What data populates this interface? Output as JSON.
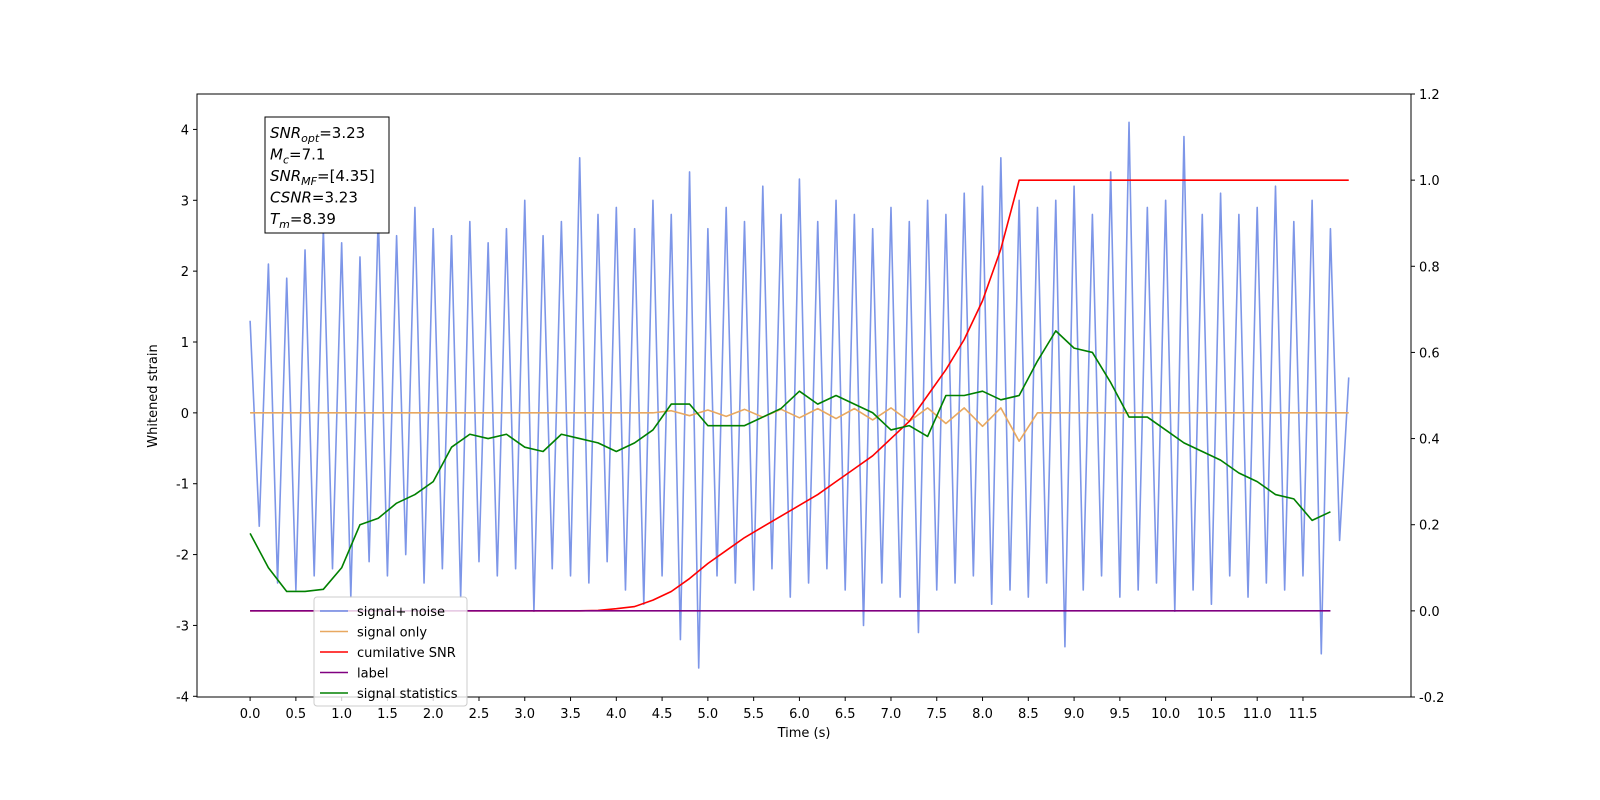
{
  "chart_data": {
    "type": "line",
    "xlabel": "Time (s)",
    "ylabel": "Whitened strain",
    "xlim": [
      -0.58,
      12.68
    ],
    "ylim": [
      -4.01,
      4.5
    ],
    "y2lim": [
      -0.2,
      1.2
    ],
    "xticks": [
      {
        "value": 0,
        "label": "0.0"
      },
      0.5,
      {
        "value": 1,
        "label": "1.0"
      },
      1.5,
      {
        "value": 2,
        "label": "2.0"
      },
      2.5,
      {
        "value": 3,
        "label": "3.0"
      },
      3.5,
      {
        "value": 4,
        "label": "4.0"
      },
      4.5,
      {
        "value": 5,
        "label": "5.0"
      },
      5.5,
      {
        "value": 6,
        "label": "6.0"
      },
      6.5,
      {
        "value": 7,
        "label": "7.0"
      },
      7.5,
      {
        "value": 8,
        "label": "8.0"
      },
      8.5,
      {
        "value": 9,
        "label": "9.0"
      },
      9.5,
      {
        "value": 10,
        "label": "10.0"
      },
      10.5,
      {
        "value": 11,
        "label": "11.0"
      },
      11.5
    ],
    "yticks": [
      -4,
      -3,
      -2,
      -1,
      0,
      1,
      2,
      3,
      4
    ],
    "y2ticks": [
      -0.2,
      {
        "value": 0,
        "label": "0.0"
      },
      0.2,
      0.4,
      0.6,
      0.8,
      {
        "value": 1,
        "label": "1.0"
      },
      1.2
    ],
    "legend_loc": "lower left",
    "annotation": [
      {
        "symbol": "SNR",
        "subscript": "opt",
        "text": "=3.23"
      },
      {
        "symbol": "M",
        "subscript": "c",
        "text": "=7.1"
      },
      {
        "symbol": "SNR",
        "subscript": "MF",
        "text": "=[4.35]"
      },
      {
        "symbol": "CSNR",
        "text": "=3.23"
      },
      {
        "symbol": "T",
        "subscript": "m",
        "text": "=8.39"
      }
    ],
    "series": [
      {
        "name": "signal+ noise",
        "color": "#6f8be6",
        "x": [
          0,
          0.1,
          0.2,
          0.3,
          0.4,
          0.5,
          0.6,
          0.7,
          0.8,
          0.9,
          1,
          1.1,
          1.2,
          1.3,
          1.4,
          1.5,
          1.6,
          1.7,
          1.8,
          1.9,
          2,
          2.1,
          2.2,
          2.3,
          2.4,
          2.5,
          2.6,
          2.7,
          2.8,
          2.9,
          3,
          3.1,
          3.2,
          3.3,
          3.4,
          3.5,
          3.6,
          3.7,
          3.8,
          3.9,
          4,
          4.1,
          4.2,
          4.3,
          4.4,
          4.5,
          4.6,
          4.7,
          4.8,
          4.9,
          5,
          5.1,
          5.2,
          5.3,
          5.4,
          5.5,
          5.6,
          5.7,
          5.8,
          5.9,
          6,
          6.1,
          6.2,
          6.3,
          6.4,
          6.5,
          6.6,
          6.7,
          6.8,
          6.9,
          7,
          7.1,
          7.2,
          7.3,
          7.4,
          7.5,
          7.6,
          7.7,
          7.8,
          7.9,
          8,
          8.1,
          8.2,
          8.3,
          8.4,
          8.5,
          8.6,
          8.7,
          8.8,
          8.9,
          9,
          9.1,
          9.2,
          9.3,
          9.4,
          9.5,
          9.6,
          9.7,
          9.8,
          9.9,
          10,
          10.1,
          10.2,
          10.3,
          10.4,
          10.5,
          10.6,
          10.7,
          10.8,
          10.9,
          11,
          11.1,
          11.2,
          11.3,
          11.4,
          11.5,
          11.6,
          11.7,
          11.8,
          11.9,
          12
        ],
        "values": [
          1.3,
          -1.6,
          2.1,
          -2.4,
          1.9,
          -2.5,
          2.3,
          -2.3,
          2.6,
          -2.2,
          2.4,
          -2.6,
          2.2,
          -2.1,
          2.8,
          -2.3,
          2.5,
          -2.0,
          2.9,
          -2.4,
          2.6,
          -2.2,
          2.5,
          -2.6,
          2.7,
          -2.1,
          2.4,
          -2.3,
          2.6,
          -2.2,
          3.0,
          -2.8,
          2.5,
          -2.2,
          2.7,
          -2.3,
          3.6,
          -2.4,
          2.8,
          -2.1,
          2.9,
          -2.5,
          2.6,
          -2.7,
          3.0,
          -2.3,
          2.8,
          -3.2,
          3.4,
          -3.6,
          2.6,
          -2.3,
          2.9,
          -2.4,
          2.7,
          -2.5,
          3.2,
          -2.2,
          2.8,
          -2.6,
          3.3,
          -2.4,
          2.7,
          -2.2,
          3.0,
          -2.5,
          2.8,
          -3.0,
          2.6,
          -2.4,
          2.9,
          -2.6,
          2.7,
          -3.1,
          3.0,
          -2.5,
          2.8,
          -2.4,
          3.1,
          -2.3,
          3.2,
          -2.7,
          3.6,
          -2.5,
          3.0,
          -2.6,
          2.9,
          -2.4,
          3.0,
          -3.3,
          3.2,
          -2.5,
          2.8,
          -2.3,
          3.4,
          -2.6,
          4.1,
          -2.5,
          2.9,
          -2.4,
          3.0,
          -2.8,
          3.9,
          -2.5,
          2.8,
          -2.7,
          3.1,
          -2.3,
          2.8,
          -2.6,
          2.9,
          -2.4,
          3.2,
          -2.5,
          2.7,
          -2.3,
          3.0,
          -3.4,
          2.6,
          -1.8,
          0.5
        ]
      },
      {
        "name": "signal only",
        "color": "#e8a860",
        "x": [
          0,
          0.2,
          0.4,
          0.6,
          0.8,
          1,
          1.2,
          1.4,
          1.6,
          1.8,
          2,
          2.2,
          2.4,
          2.6,
          2.8,
          3,
          3.2,
          3.4,
          3.6,
          3.8,
          4,
          4.2,
          4.4,
          4.6,
          4.8,
          5,
          5.2,
          5.4,
          5.6,
          5.8,
          6,
          6.2,
          6.4,
          6.6,
          6.8,
          7,
          7.2,
          7.4,
          7.6,
          7.8,
          8,
          8.2,
          8.4,
          8.6,
          8.8,
          9,
          9.2,
          9.4,
          9.6,
          9.8,
          10,
          10.2,
          10.4,
          10.6,
          10.8,
          11,
          11.2,
          11.4,
          11.6,
          11.8,
          12
        ],
        "values": [
          0,
          0,
          0,
          0,
          0,
          0,
          0,
          0,
          0,
          0,
          0,
          0,
          0,
          0,
          0,
          0,
          0,
          0,
          0,
          0,
          0,
          0,
          0,
          0.03,
          -0.04,
          0.04,
          -0.05,
          0.05,
          -0.06,
          0.05,
          -0.07,
          0.06,
          -0.08,
          0.06,
          -0.1,
          0.07,
          -0.12,
          0.07,
          -0.15,
          0.07,
          -0.19,
          0.07,
          -0.4,
          0,
          0,
          0,
          0,
          0,
          0,
          0,
          0,
          0,
          0,
          0,
          0,
          0,
          0,
          0,
          0,
          0,
          0
        ]
      },
      {
        "name": "cumilative SNR",
        "color": "#ff0000",
        "axis": "y2",
        "x": [
          0,
          0.2,
          0.4,
          0.6,
          0.8,
          1,
          1.2,
          1.4,
          1.6,
          1.8,
          2,
          2.2,
          2.4,
          2.6,
          2.8,
          3,
          3.2,
          3.4,
          3.6,
          3.8,
          4,
          4.2,
          4.4,
          4.6,
          4.8,
          5,
          5.2,
          5.4,
          5.6,
          5.8,
          6,
          6.2,
          6.4,
          6.6,
          6.8,
          7,
          7.2,
          7.4,
          7.6,
          7.8,
          8,
          8.2,
          8.4,
          8.6,
          8.8,
          9,
          9.2,
          9.4,
          9.6,
          9.8,
          10,
          10.2,
          10.4,
          10.6,
          10.8,
          11,
          11.2,
          11.4,
          11.6,
          11.8,
          12
        ],
        "values": [
          0,
          0,
          0,
          0,
          0,
          0,
          0,
          0,
          0,
          0,
          0,
          0,
          0,
          0,
          0,
          0,
          0,
          0,
          0,
          0.001,
          0.005,
          0.01,
          0.025,
          0.045,
          0.075,
          0.11,
          0.14,
          0.17,
          0.195,
          0.22,
          0.245,
          0.27,
          0.3,
          0.33,
          0.36,
          0.4,
          0.44,
          0.5,
          0.56,
          0.63,
          0.72,
          0.84,
          1.0,
          1.0,
          1.0,
          1.0,
          1.0,
          1.0,
          1.0,
          1.0,
          1.0,
          1.0,
          1.0,
          1.0,
          1.0,
          1.0,
          1.0,
          1.0,
          1.0,
          1.0,
          1.0
        ]
      },
      {
        "name": "label",
        "color": "#800080",
        "axis": "y2",
        "x": [
          0,
          0.2,
          0.4,
          0.6,
          0.8,
          1,
          1.2,
          1.4,
          1.6,
          1.8,
          2,
          2.2,
          2.4,
          2.6,
          2.8,
          3,
          3.2,
          3.4,
          3.6,
          3.8,
          4,
          4.2,
          4.4,
          4.6,
          4.8,
          5,
          5.2,
          5.4,
          5.6,
          5.8,
          6,
          6.2,
          6.4,
          6.6,
          6.8,
          7,
          7.2,
          7.4,
          7.6,
          7.8,
          8,
          8.2,
          8.4,
          8.6,
          8.8,
          9,
          9.2,
          9.4,
          9.6,
          9.8,
          10,
          10.2,
          10.4,
          10.6,
          10.8,
          11,
          11.2,
          11.4,
          11.6,
          11.8,
          12
        ],
        "values": [
          0,
          0,
          0,
          0,
          0,
          0,
          0,
          0,
          0,
          0,
          0,
          0,
          0,
          0,
          0,
          0,
          0,
          0,
          0,
          0,
          0,
          0,
          0,
          0,
          0,
          0,
          0,
          0,
          0,
          0,
          0,
          0,
          0,
          0,
          0,
          0,
          0,
          0,
          0,
          0,
          0,
          0,
          0,
          0,
          0,
          0,
          0,
          0,
          0,
          0,
          0,
          0,
          0,
          0,
          0,
          0,
          0,
          0,
          0,
          0,
          null
        ]
      },
      {
        "name": "signal statistics",
        "color": "#008000",
        "axis": "y2",
        "x": [
          0,
          0.2,
          0.4,
          0.6,
          0.8,
          1,
          1.2,
          1.4,
          1.6,
          1.8,
          2,
          2.2,
          2.4,
          2.6,
          2.8,
          3,
          3.2,
          3.4,
          3.6,
          3.8,
          4,
          4.2,
          4.4,
          4.6,
          4.8,
          5,
          5.2,
          5.4,
          5.6,
          5.8,
          6,
          6.2,
          6.4,
          6.6,
          6.8,
          7,
          7.2,
          7.4,
          7.6,
          7.8,
          8,
          8.2,
          8.4,
          8.6,
          8.8,
          9,
          9.2,
          9.4,
          9.6,
          9.8,
          10,
          10.2,
          10.4,
          10.6,
          10.8,
          11,
          11.2,
          11.4,
          11.6,
          11.8,
          12
        ],
        "values": [
          0.18,
          0.1,
          0.045,
          0.045,
          0.05,
          0.1,
          0.2,
          0.215,
          0.25,
          0.27,
          0.3,
          0.38,
          0.41,
          0.4,
          0.41,
          0.38,
          0.37,
          0.41,
          0.4,
          0.39,
          0.37,
          0.39,
          0.42,
          0.48,
          0.48,
          0.43,
          0.43,
          0.43,
          0.45,
          0.47,
          0.51,
          0.48,
          0.5,
          0.48,
          0.46,
          0.42,
          0.43,
          0.405,
          0.5,
          0.5,
          0.51,
          0.49,
          0.5,
          0.58,
          0.65,
          0.61,
          0.6,
          0.53,
          0.45,
          0.45,
          0.42,
          0.39,
          0.37,
          0.35,
          0.32,
          0.3,
          0.27,
          0.26,
          0.21,
          0.23,
          null
        ]
      }
    ]
  }
}
